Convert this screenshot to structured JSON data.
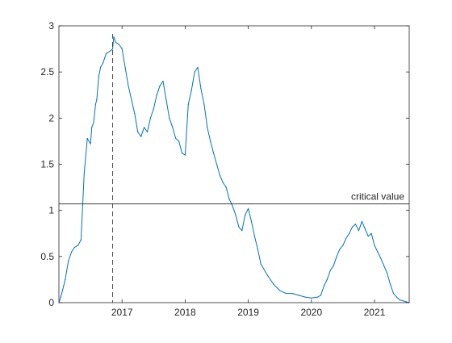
{
  "chart_data": {
    "type": "line",
    "xlabel": "",
    "ylabel": "",
    "xlim": [
      2016.0,
      2021.55
    ],
    "ylim": [
      0,
      3
    ],
    "x_ticks": [
      2017,
      2018,
      2019,
      2020,
      2021
    ],
    "x_tick_labels": [
      "2017",
      "2018",
      "2019",
      "2020",
      "2021"
    ],
    "y_ticks": [
      0,
      0.5,
      1,
      1.5,
      2,
      2.5,
      3
    ],
    "y_tick_labels": [
      "0",
      "0.5",
      "1",
      "1.5",
      "2",
      "2.5",
      "3"
    ],
    "grid": false,
    "legend": "none",
    "series": [
      {
        "color": "#0072BD",
        "x": [
          2016.0,
          2016.03,
          2016.06,
          2016.1,
          2016.15,
          2016.2,
          2016.25,
          2016.3,
          2016.35,
          2016.4,
          2016.45,
          2016.5,
          2016.52,
          2016.55,
          2016.58,
          2016.6,
          2016.63,
          2016.66,
          2016.7,
          2016.75,
          2016.8,
          2016.85,
          2016.87,
          2016.9,
          2016.95,
          2017.0,
          2017.05,
          2017.1,
          2017.15,
          2017.2,
          2017.25,
          2017.3,
          2017.35,
          2017.4,
          2017.45,
          2017.5,
          2017.55,
          2017.6,
          2017.65,
          2017.7,
          2017.75,
          2017.8,
          2017.85,
          2017.9,
          2017.95,
          2018.0,
          2018.05,
          2018.1,
          2018.15,
          2018.2,
          2018.25,
          2018.3,
          2018.35,
          2018.4,
          2018.45,
          2018.5,
          2018.55,
          2018.6,
          2018.65,
          2018.7,
          2018.75,
          2018.8,
          2018.85,
          2018.9,
          2018.95,
          2019.0,
          2019.05,
          2019.1,
          2019.15,
          2019.2,
          2019.3,
          2019.4,
          2019.5,
          2019.6,
          2019.7,
          2019.8,
          2019.9,
          2020.0,
          2020.1,
          2020.15,
          2020.2,
          2020.25,
          2020.3,
          2020.35,
          2020.4,
          2020.45,
          2020.5,
          2020.55,
          2020.6,
          2020.65,
          2020.7,
          2020.75,
          2020.8,
          2020.85,
          2020.9,
          2020.95,
          2021.0,
          2021.05,
          2021.1,
          2021.15,
          2021.2,
          2021.25,
          2021.3,
          2021.35,
          2021.4,
          2021.45,
          2021.5,
          2021.55
        ],
        "y": [
          0.0,
          0.06,
          0.14,
          0.25,
          0.45,
          0.55,
          0.6,
          0.62,
          0.68,
          1.4,
          1.78,
          1.72,
          1.9,
          1.95,
          2.15,
          2.2,
          2.45,
          2.55,
          2.6,
          2.7,
          2.72,
          2.75,
          2.88,
          2.82,
          2.8,
          2.75,
          2.55,
          2.35,
          2.2,
          2.05,
          1.85,
          1.8,
          1.9,
          1.85,
          2.0,
          2.1,
          2.25,
          2.35,
          2.4,
          2.2,
          2.0,
          1.9,
          1.78,
          1.75,
          1.62,
          1.6,
          2.15,
          2.3,
          2.5,
          2.55,
          2.32,
          2.15,
          1.9,
          1.75,
          1.62,
          1.5,
          1.38,
          1.3,
          1.25,
          1.12,
          1.05,
          0.95,
          0.82,
          0.78,
          0.95,
          1.02,
          0.88,
          0.72,
          0.58,
          0.42,
          0.3,
          0.2,
          0.13,
          0.1,
          0.1,
          0.08,
          0.06,
          0.05,
          0.06,
          0.08,
          0.18,
          0.25,
          0.35,
          0.4,
          0.5,
          0.58,
          0.62,
          0.7,
          0.75,
          0.82,
          0.85,
          0.78,
          0.88,
          0.8,
          0.72,
          0.75,
          0.62,
          0.55,
          0.48,
          0.4,
          0.32,
          0.2,
          0.1,
          0.06,
          0.03,
          0.02,
          0.01,
          0.0
        ]
      }
    ],
    "annotations": [
      {
        "type": "hline",
        "y": 1.07,
        "label": "critical value",
        "color": "#262626"
      },
      {
        "type": "vline",
        "x": 2016.85,
        "style": "dashed",
        "color": "#262626"
      }
    ]
  }
}
